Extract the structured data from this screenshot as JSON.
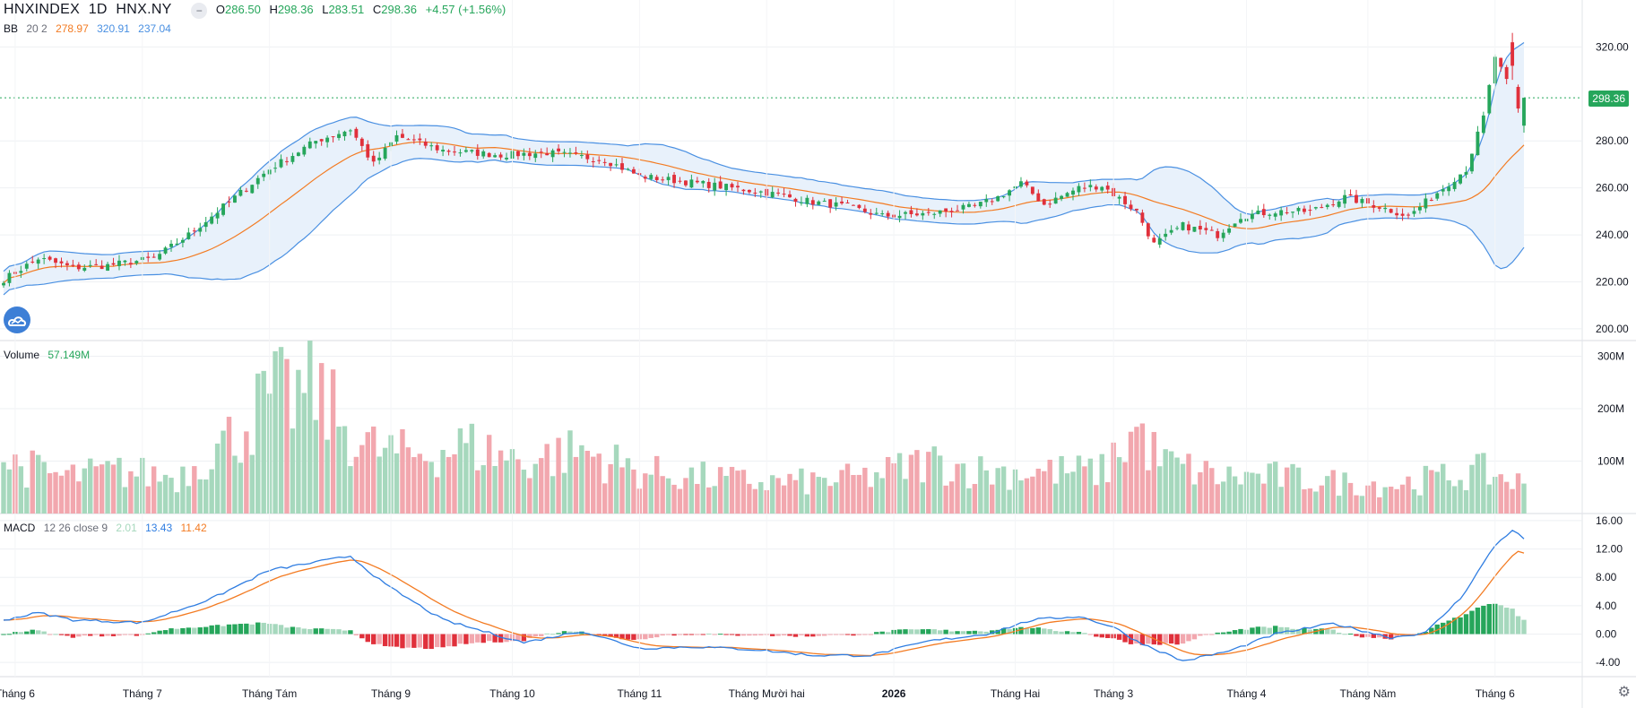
{
  "header": {
    "symbol": "HNXINDEX",
    "interval": "1D",
    "exchange": "HNX.NY",
    "collapse_icon": "minus-icon",
    "ohlc": {
      "open_label": "O",
      "open": "286.50",
      "high_label": "H",
      "high": "298.36",
      "low_label": "L",
      "low": "283.51",
      "close_label": "C",
      "close": "298.36",
      "change": "+4.57 (+1.56%)"
    }
  },
  "indicators": {
    "bb": {
      "name": "BB",
      "params": "20 2",
      "basis": "278.97",
      "upper": "320.91",
      "lower": "237.04"
    },
    "volume": {
      "name": "Volume",
      "value": "57.149M"
    },
    "macd": {
      "name": "MACD",
      "params": "12 26 close 9",
      "hist": "2.01",
      "macd": "13.43",
      "signal": "11.42"
    }
  },
  "colors": {
    "up": "#26a65b",
    "down": "#e0303b",
    "vol_up": "#a6d8bd",
    "vol_down": "#f2a7ae",
    "bb_band": "#4a90e2",
    "bb_basis": "#f37b22",
    "bb_fill": "#e8f1fb",
    "macd_line": "#2f7de1",
    "signal_line": "#f37b22",
    "grid": "#eef0f3",
    "axis_text": "#131722"
  },
  "current_price_tag": "298.36",
  "chart_data": {
    "type": "candlestick",
    "title": "",
    "price_axis": {
      "ticks": [
        "200.00",
        "220.00",
        "240.00",
        "260.00",
        "280.00",
        "298.36",
        "320.00"
      ],
      "ylim": [
        195,
        340
      ]
    },
    "volume_axis": {
      "ticks": [
        "100M",
        "200M",
        "300M"
      ],
      "ylim": [
        0,
        330
      ]
    },
    "macd_axis": {
      "ticks": [
        "-4.00",
        "0.00",
        "4.00",
        "8.00",
        "12.00",
        "16.00"
      ],
      "ylim": [
        -6,
        17
      ]
    },
    "x_labels": [
      "Tháng 6",
      "Tháng 7",
      "Tháng Tám",
      "Tháng 9",
      "Tháng 10",
      "Tháng 11",
      "Tháng Mười hai",
      "2026",
      "Tháng Hai",
      "Tháng 3",
      "Tháng 4",
      "Tháng Năm",
      "Tháng 6"
    ],
    "x_label_index": [
      2,
      24,
      46,
      67,
      88,
      110,
      132,
      154,
      175,
      192,
      215,
      236,
      258
    ],
    "series": [
      {
        "name": "HNXINDEX",
        "close_anchors": [
          [
            0,
            221
          ],
          [
            6,
            230
          ],
          [
            12,
            226
          ],
          [
            18,
            227
          ],
          [
            26,
            230
          ],
          [
            32,
            240
          ],
          [
            38,
            252
          ],
          [
            46,
            268
          ],
          [
            54,
            280
          ],
          [
            60,
            285
          ],
          [
            64,
            270
          ],
          [
            68,
            282
          ],
          [
            76,
            276
          ],
          [
            86,
            274
          ],
          [
            94,
            275
          ],
          [
            104,
            272
          ],
          [
            110,
            265
          ],
          [
            120,
            262
          ],
          [
            132,
            258
          ],
          [
            140,
            254
          ],
          [
            146,
            252
          ],
          [
            152,
            248
          ],
          [
            160,
            249
          ],
          [
            168,
            252
          ],
          [
            172,
            256
          ],
          [
            176,
            262
          ],
          [
            180,
            253
          ],
          [
            186,
            260
          ],
          [
            190,
            261
          ],
          [
            196,
            250
          ],
          [
            199,
            236
          ],
          [
            204,
            244
          ],
          [
            210,
            240
          ],
          [
            214,
            248
          ],
          [
            220,
            250
          ],
          [
            226,
            250
          ],
          [
            232,
            256
          ],
          [
            238,
            252
          ],
          [
            243,
            248
          ],
          [
            248,
            258
          ],
          [
            253,
            268
          ],
          [
            256,
            290
          ],
          [
            258,
            316
          ],
          [
            262,
            294
          ],
          [
            263,
            298.36
          ]
        ]
      },
      {
        "name": "Volume (M)",
        "anchors": [
          [
            0,
            100
          ],
          [
            10,
            70
          ],
          [
            20,
            80
          ],
          [
            30,
            70
          ],
          [
            40,
            150
          ],
          [
            46,
            220
          ],
          [
            54,
            230
          ],
          [
            62,
            130
          ],
          [
            70,
            110
          ],
          [
            80,
            130
          ],
          [
            90,
            100
          ],
          [
            100,
            120
          ],
          [
            110,
            80
          ],
          [
            120,
            70
          ],
          [
            130,
            60
          ],
          [
            140,
            60
          ],
          [
            150,
            70
          ],
          [
            160,
            100
          ],
          [
            170,
            80
          ],
          [
            180,
            80
          ],
          [
            190,
            80
          ],
          [
            196,
            160
          ],
          [
            200,
            100
          ],
          [
            210,
            70
          ],
          [
            220,
            70
          ],
          [
            230,
            60
          ],
          [
            240,
            55
          ],
          [
            250,
            70
          ],
          [
            256,
            80
          ],
          [
            263,
            57
          ]
        ]
      },
      {
        "name": "MACD",
        "anchors": [
          [
            0,
            2.0
          ],
          [
            6,
            3.0
          ],
          [
            12,
            2.0
          ],
          [
            24,
            1.6
          ],
          [
            36,
            5
          ],
          [
            46,
            9
          ],
          [
            60,
            11
          ],
          [
            66,
            7
          ],
          [
            76,
            2
          ],
          [
            90,
            -1.2
          ],
          [
            100,
            0.4
          ],
          [
            110,
            -2
          ],
          [
            120,
            -1.8
          ],
          [
            130,
            -2.2
          ],
          [
            140,
            -3
          ],
          [
            150,
            -3
          ],
          [
            160,
            -1
          ],
          [
            170,
            0
          ],
          [
            178,
            2
          ],
          [
            186,
            2.5
          ],
          [
            192,
            1
          ],
          [
            196,
            -1
          ],
          [
            204,
            -3.8
          ],
          [
            212,
            -2.4
          ],
          [
            220,
            0
          ],
          [
            230,
            1.5
          ],
          [
            240,
            -0.5
          ],
          [
            246,
            0.2
          ],
          [
            252,
            5
          ],
          [
            258,
            12.5
          ],
          [
            261,
            14.7
          ],
          [
            263,
            13.43
          ]
        ]
      }
    ],
    "bb_params": {
      "length": 20,
      "mult": 2
    },
    "macd_params": {
      "fast": 12,
      "slow": 26,
      "signal": 9
    }
  }
}
